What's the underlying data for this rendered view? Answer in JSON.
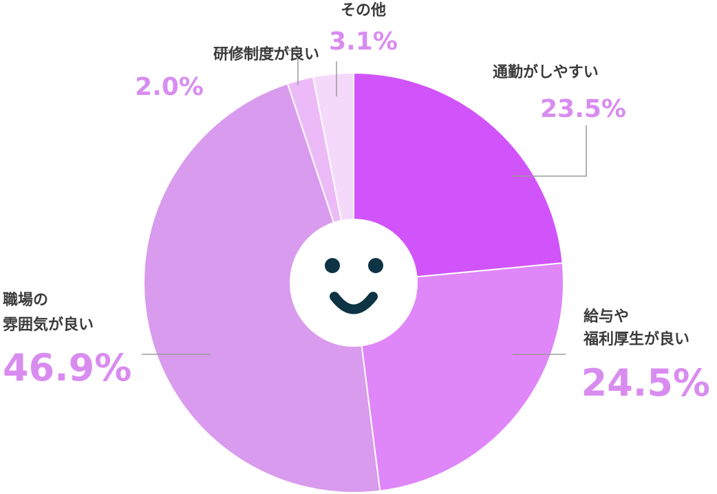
{
  "chart_data": {
    "type": "pie",
    "start_angle_deg": 0,
    "direction": "clockwise",
    "slices": [
      {
        "label": [
          "通勤がしやすい"
        ],
        "value": 23.5,
        "value_text": "23.5%",
        "color": "#d154fb"
      },
      {
        "label": [
          "給与や",
          "福利厚生が良い"
        ],
        "value": 24.5,
        "value_text": "24.5%",
        "color": "#df86f9"
      },
      {
        "label": [
          "職場の",
          "雰囲気が良い"
        ],
        "value": 46.9,
        "value_text": "46.9%",
        "color": "#d99bed"
      },
      {
        "label": [
          "研修制度が良い"
        ],
        "value": 2.0,
        "value_text": "2.0%",
        "color": "#ecbbf7"
      },
      {
        "label": [
          "その他"
        ],
        "value": 3.1,
        "value_text": "3.1%",
        "color": "#f4d9fb"
      }
    ],
    "center_icon": "smiley-face-icon",
    "leader_line_color": "#9a9a9a",
    "percent_color": "#d98cf0",
    "label_color": "#3a3a3a"
  }
}
